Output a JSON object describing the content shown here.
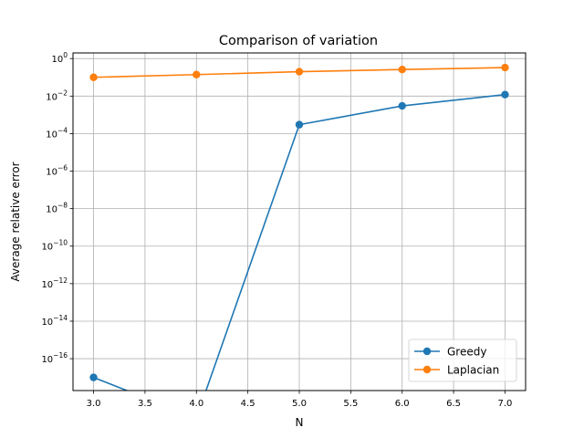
{
  "chart_data": {
    "type": "line",
    "title": "Comparison of variation",
    "xlabel": "N",
    "ylabel": "Average relative error",
    "yscale": "log",
    "grid": true,
    "legend_position": "lower-right",
    "xlim": [
      2.8,
      7.2
    ],
    "ylim": [
      2e-18,
      2.0
    ],
    "x_ticks": [
      {
        "value": 3.0,
        "label": "3.0"
      },
      {
        "value": 3.5,
        "label": "3.5"
      },
      {
        "value": 4.0,
        "label": "4.0"
      },
      {
        "value": 4.5,
        "label": "4.5"
      },
      {
        "value": 5.0,
        "label": "5.0"
      },
      {
        "value": 5.5,
        "label": "5.5"
      },
      {
        "value": 6.0,
        "label": "6.0"
      },
      {
        "value": 6.5,
        "label": "6.5"
      },
      {
        "value": 7.0,
        "label": "7.0"
      }
    ],
    "y_ticks": [
      {
        "exp": 0,
        "mant": "10",
        "sup": "0"
      },
      {
        "exp": -2,
        "mant": "10",
        "sup": "−2"
      },
      {
        "exp": -4,
        "mant": "10",
        "sup": "−4"
      },
      {
        "exp": -6,
        "mant": "10",
        "sup": "−6"
      },
      {
        "exp": -8,
        "mant": "10",
        "sup": "−8"
      },
      {
        "exp": -10,
        "mant": "10",
        "sup": "−10"
      },
      {
        "exp": -12,
        "mant": "10",
        "sup": "−12"
      },
      {
        "exp": -14,
        "mant": "10",
        "sup": "−14"
      },
      {
        "exp": -16,
        "mant": "10",
        "sup": "−16"
      }
    ],
    "series": [
      {
        "name": "Greedy",
        "color": "#1f77b4",
        "x": [
          3.0,
          4.0,
          5.0,
          6.0,
          7.0
        ],
        "y": [
          1e-17,
          0,
          0.0003,
          0.003,
          0.012
        ]
      },
      {
        "name": "Laplacian",
        "color": "#ff7f0e",
        "x": [
          3.0,
          4.0,
          5.0,
          6.0,
          7.0
        ],
        "y": [
          0.1,
          0.14,
          0.2,
          0.26,
          0.33
        ]
      }
    ]
  }
}
